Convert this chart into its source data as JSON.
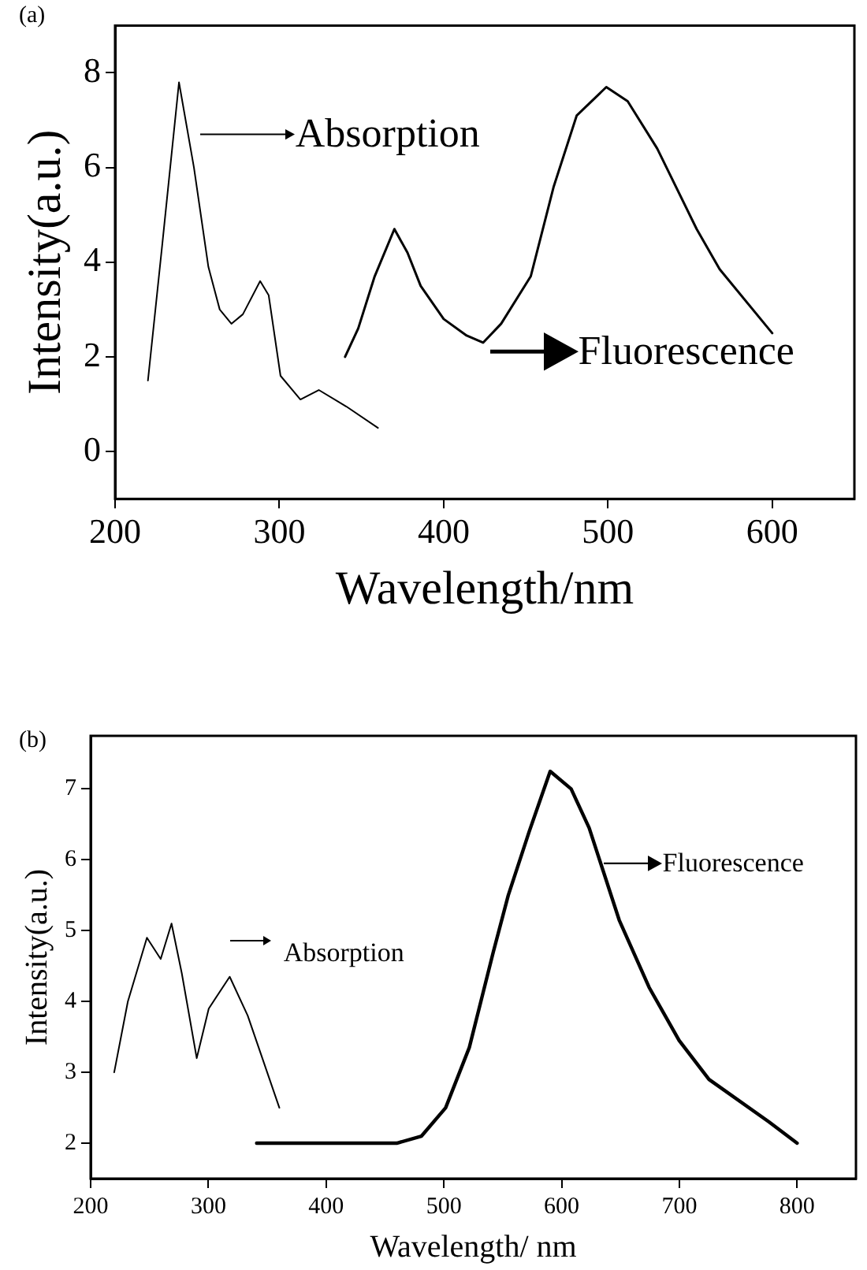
{
  "chart_data": [
    {
      "type": "line",
      "title": "(a)",
      "xlabel": "Wavelength/nm",
      "ylabel": "Intensity(a.u.)",
      "xlim": [
        200,
        650
      ],
      "xticks": [
        200,
        300,
        400,
        500,
        600
      ],
      "ylim": [
        -1,
        9
      ],
      "yticks": [
        0,
        2,
        4,
        6,
        8
      ],
      "grid": false,
      "legend": false,
      "marker": "none",
      "line_style": "solid",
      "series": [
        {
          "x": [
            220,
            228.8,
            238.9,
            248,
            256.8,
            263.7,
            270.8,
            277.8,
            288.3,
            293.5,
            300.7,
            312.8,
            324,
            340.8,
            360
          ],
          "values": [
            1.5,
            4.4,
            7.8,
            6.0,
            3.9,
            3.0,
            2.7,
            2.9,
            3.6,
            3.3,
            1.6,
            1.1,
            1.3,
            0.95,
            0.5
          ],
          "color": "#000000"
        },
        {
          "x": [
            340,
            348,
            358,
            370,
            378,
            386,
            400,
            414,
            424,
            435,
            453,
            467,
            481,
            499,
            512,
            530,
            554,
            568,
            600
          ],
          "values": [
            2.0,
            2.6,
            3.7,
            4.7,
            4.2,
            3.5,
            2.8,
            2.45,
            2.3,
            2.7,
            3.7,
            5.6,
            7.1,
            7.7,
            7.4,
            6.4,
            4.7,
            3.85,
            2.5
          ],
          "color": "#000000"
        }
      ],
      "annotations": [
        "Absorption",
        "Fluorescence"
      ]
    },
    {
      "type": "line",
      "title": "(b)",
      "xlabel": "Wavelength/ nm",
      "ylabel": "Intensity(a.u.)",
      "xlim": [
        200,
        850
      ],
      "xticks": [
        200,
        300,
        400,
        500,
        600,
        700,
        800
      ],
      "ylim": [
        1.5,
        7.75
      ],
      "yticks": [
        2,
        3,
        4,
        5,
        6,
        7
      ],
      "grid": false,
      "legend": false,
      "marker": "none",
      "line_style": "solid",
      "series": [
        {
          "x": [
            220,
            231.6,
            247.8,
            259.5,
            268.7,
            277.4,
            290.1,
            300.3,
            318.1,
            333.4,
            360.3
          ],
          "values": [
            3.0,
            4.0,
            4.9,
            4.6,
            5.1,
            4.4,
            3.2,
            3.9,
            4.35,
            3.8,
            2.5
          ],
          "color": "#000000"
        },
        {
          "x": [
            341,
            460,
            481,
            501.5,
            521.6,
            542,
            554.7,
            572.5,
            590.3,
            608.1,
            623.4,
            648.9,
            674.3,
            699.8,
            725.2,
            776.1,
            800
          ],
          "values": [
            2.0,
            2.0,
            2.1,
            2.5,
            3.35,
            4.7,
            5.5,
            6.4,
            7.25,
            7.0,
            6.45,
            5.15,
            4.2,
            3.45,
            2.9,
            2.3,
            2.0
          ],
          "color": "#000000"
        }
      ],
      "annotations": [
        "Absorption",
        "Fluorescence"
      ]
    }
  ]
}
